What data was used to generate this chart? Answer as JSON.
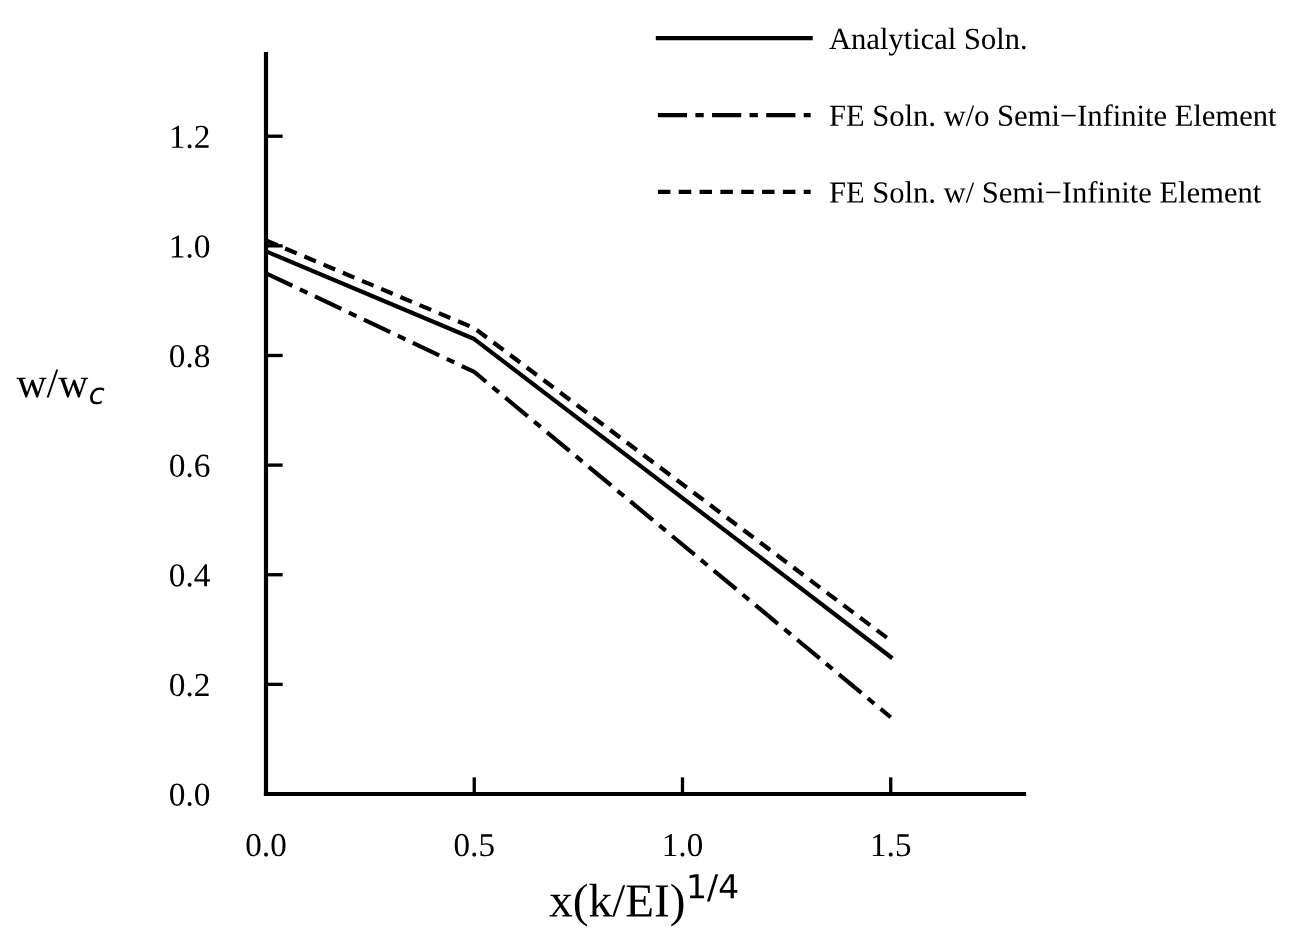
{
  "chart_data": {
    "type": "line",
    "xlabel": "x(k/EI)$^{1/4}$",
    "ylabel": "w/w$_{c}$",
    "x": [
      0,
      0.5,
      1.5
    ],
    "series": [
      {
        "name": "Analytical Soln.",
        "color": "#000000",
        "line_style": "solid",
        "values": [
          0.99,
          0.83,
          0.25
        ]
      },
      {
        "name": "FE Soln. w/o Semi−Infinite Element",
        "color": "#000000",
        "line_style": "dashdot",
        "values": [
          0.95,
          0.77,
          0.14
        ]
      },
      {
        "name": "FE Soln. w/ Semi−Infinite Element",
        "color": "#000000",
        "line_style": "dashed",
        "values": [
          1.01,
          0.85,
          0.28
        ]
      }
    ],
    "xlim": [
      0,
      1.82
    ],
    "ylim": [
      0,
      1.35
    ],
    "xticks": [
      {
        "value": 0,
        "label": "0.0"
      },
      0.5,
      {
        "value": 1,
        "label": "1.0"
      },
      1.5
    ],
    "yticks": [
      {
        "value": 0,
        "label": "0.0"
      },
      0.2,
      0.4,
      0.6,
      0.8,
      {
        "value": 1,
        "label": "1.0"
      },
      1.2
    ],
    "grid": false,
    "legend": "top right",
    "marker": "none"
  }
}
